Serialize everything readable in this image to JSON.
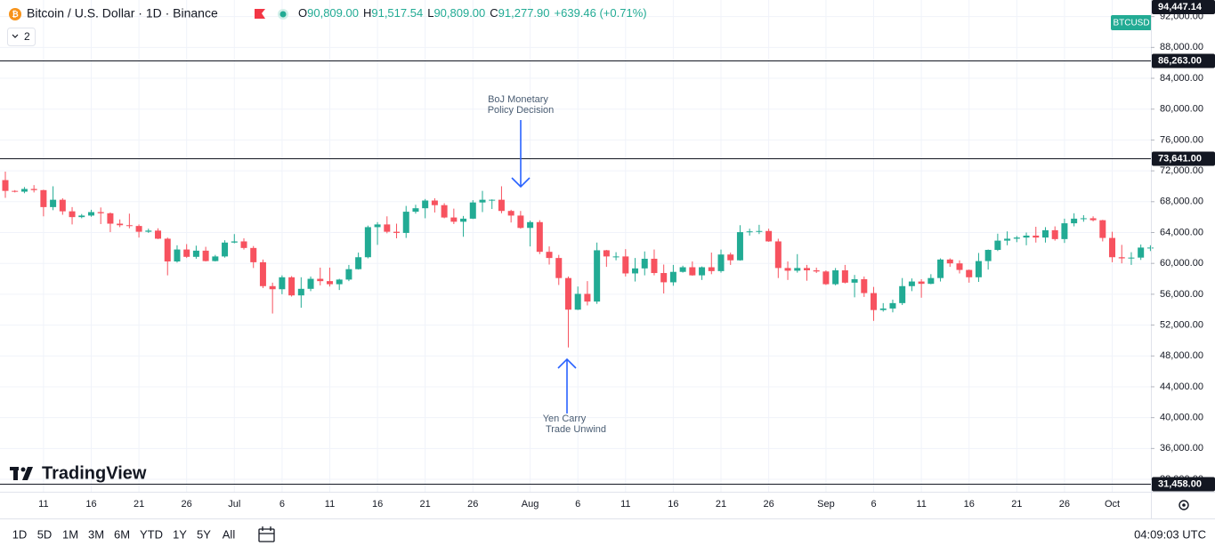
{
  "header": {
    "title": "Bitcoin / U.S. Dollar · 1D · Binance",
    "o_label": "O",
    "o": "90,809.00",
    "h_label": "H",
    "h": "91,517.54",
    "l_label": "L",
    "l": "90,809.00",
    "c_label": "C",
    "c": "91,277.90",
    "change": "+639.46 (+0.71%)",
    "indicators": "2",
    "symbol_tag": "BTCUSD"
  },
  "chart_data": {
    "type": "candlestick",
    "categories": [
      null,
      null,
      null,
      null,
      "11",
      null,
      null,
      null,
      null,
      "16",
      null,
      null,
      null,
      null,
      "21",
      null,
      null,
      null,
      null,
      "26",
      null,
      null,
      null,
      null,
      "Jul",
      null,
      null,
      null,
      null,
      "6",
      null,
      null,
      null,
      null,
      "11",
      null,
      null,
      null,
      null,
      "16",
      null,
      null,
      null,
      null,
      "21",
      null,
      null,
      null,
      null,
      "26",
      null,
      null,
      null,
      null,
      null,
      "Aug",
      null,
      null,
      null,
      null,
      "6",
      null,
      null,
      null,
      null,
      "11",
      null,
      null,
      null,
      null,
      "16",
      null,
      null,
      null,
      null,
      "21",
      null,
      null,
      null,
      null,
      "26",
      null,
      null,
      null,
      null,
      null,
      "Sep",
      null,
      null,
      null,
      null,
      "6",
      null,
      null,
      null,
      null,
      "11",
      null,
      null,
      null,
      null,
      "16",
      null,
      null,
      null,
      null,
      "21",
      null,
      null,
      null,
      null,
      "26",
      null,
      null,
      null,
      null,
      "Oct",
      null,
      null,
      null,
      null
    ],
    "open": [
      70800,
      69400,
      69300,
      69650,
      69500,
      67300,
      68250,
      66750,
      66000,
      66200,
      66650,
      66500,
      65150,
      64950,
      64850,
      64100,
      64250,
      63200,
      60250,
      61800,
      60850,
      61650,
      60300,
      60900,
      62700,
      62850,
      62000,
      60150,
      57050,
      56650,
      58200,
      55850,
      56700,
      58000,
      57700,
      57300,
      57900,
      59250,
      60800,
      64700,
      65050,
      64100,
      63950,
      66700,
      67150,
      68150,
      67550,
      65950,
      65400,
      65800,
      67900,
      68250,
      68250,
      66800,
      66200,
      64600,
      65350,
      61500,
      60700,
      58100,
      54000,
      56050,
      55050,
      61700,
      60900,
      60900,
      58700,
      59350,
      60600,
      58750,
      57550,
      58900,
      59500,
      58450,
      59500,
      59000,
      61150,
      60400,
      64050,
      64150,
      64200,
      62850,
      59400,
      59050,
      59400,
      59100,
      58950,
      57300,
      59100,
      57500,
      57950,
      56150,
      53950,
      54150,
      54850,
      57050,
      57650,
      57350,
      58100,
      60500,
      60000,
      59150,
      58200,
      60300,
      61750,
      62950,
      63200,
      63350,
      63600,
      63350,
      64300,
      63150,
      65200,
      65800,
      65850,
      65600,
      63300,
      60800,
      60650,
      60750,
      62050
    ],
    "high": [
      71900,
      69500,
      69900,
      70150,
      69550,
      69999,
      68450,
      67300,
      66400,
      66950,
      67250,
      66600,
      65700,
      66450,
      65050,
      64500,
      64550,
      63350,
      62350,
      62500,
      62300,
      62150,
      61100,
      63000,
      63800,
      63250,
      62250,
      60500,
      57500,
      58450,
      58350,
      58200,
      58300,
      59450,
      59450,
      58000,
      59800,
      61400,
      64900,
      65350,
      66100,
      65150,
      67450,
      67600,
      68350,
      68450,
      67800,
      67100,
      66150,
      68200,
      69400,
      68300,
      70000,
      66950,
      66800,
      65550,
      65600,
      62200,
      61100,
      58300,
      57000,
      57700,
      62700,
      61750,
      61450,
      61850,
      60700,
      61550,
      61800,
      59850,
      59800,
      59700,
      60250,
      59600,
      61400,
      61800,
      61400,
      64950,
      64500,
      65000,
      64500,
      63200,
      60250,
      61200,
      59800,
      59450,
      59100,
      59400,
      59800,
      58500,
      58300,
      56950,
      54850,
      55300,
      58100,
      58050,
      57950,
      58600,
      60650,
      60650,
      60400,
      59200,
      61350,
      61800,
      63850,
      64150,
      63550,
      64000,
      64750,
      64700,
      64800,
      65800,
      66500,
      66250,
      66100,
      65650,
      64100,
      62400,
      61450,
      62450,
      62350
    ],
    "low": [
      68500,
      69200,
      69100,
      69200,
      66100,
      66900,
      66300,
      65050,
      65850,
      66050,
      65100,
      64050,
      64700,
      64550,
      63350,
      63950,
      63150,
      58450,
      60100,
      60700,
      60600,
      60250,
      60250,
      60750,
      62600,
      61800,
      59400,
      56800,
      53500,
      56000,
      55700,
      54250,
      56400,
      57150,
      57000,
      56550,
      57700,
      59200,
      60650,
      62400,
      63900,
      63250,
      63300,
      66450,
      65850,
      66600,
      65850,
      65100,
      63450,
      65750,
      66650,
      67050,
      66500,
      65300,
      64500,
      62200,
      61200,
      59850,
      57200,
      49100,
      53950,
      54550,
      54750,
      59550,
      60400,
      58300,
      57650,
      58450,
      58450,
      56100,
      57100,
      58800,
      58400,
      57850,
      58600,
      58800,
      59800,
      60350,
      63600,
      63800,
      62800,
      58100,
      57850,
      58800,
      57750,
      58750,
      57200,
      57150,
      57400,
      55600,
      55650,
      52550,
      53750,
      53650,
      54600,
      56400,
      55550,
      57300,
      57650,
      59550,
      58700,
      57500,
      57600,
      59200,
      61600,
      62350,
      62750,
      62350,
      62700,
      62700,
      62950,
      62650,
      64800,
      65400,
      65450,
      62850,
      60150,
      60000,
      59800,
      60450,
      61600
    ],
    "close": [
      69400,
      69300,
      69650,
      69500,
      67300,
      68250,
      66750,
      66000,
      66200,
      66650,
      66500,
      65150,
      64950,
      64850,
      64100,
      64250,
      63200,
      60250,
      61800,
      60850,
      61650,
      60300,
      60900,
      62700,
      62850,
      62000,
      60150,
      57050,
      56650,
      58200,
      55850,
      56700,
      58000,
      57700,
      57300,
      57900,
      59250,
      60800,
      64700,
      65050,
      64100,
      63950,
      66700,
      67150,
      68150,
      67550,
      65950,
      65400,
      65800,
      67900,
      68250,
      68250,
      66800,
      66200,
      64600,
      65350,
      61500,
      60700,
      58100,
      54000,
      56050,
      55050,
      61700,
      60900,
      60900,
      58700,
      59350,
      60600,
      58750,
      57550,
      58900,
      59500,
      58450,
      59500,
      59000,
      61150,
      60400,
      64050,
      64150,
      64200,
      62850,
      59400,
      59050,
      59400,
      59100,
      58950,
      57300,
      59100,
      57500,
      57950,
      56150,
      53950,
      54150,
      54850,
      57050,
      57650,
      57350,
      58100,
      60500,
      60000,
      59150,
      58200,
      60300,
      61750,
      62950,
      63200,
      63350,
      63600,
      63350,
      64300,
      63150,
      65200,
      65800,
      65850,
      65600,
      63300,
      60800,
      60650,
      60750,
      62050,
      62050
    ],
    "up_color": "#22ab94",
    "down_color": "#f7525f",
    "ylim": [
      30390,
      94150
    ],
    "yticks": [
      {
        "value": 32000,
        "label": "32,000.00"
      },
      {
        "value": 36000,
        "label": "36,000.00"
      },
      {
        "value": 40000,
        "label": "40,000.00"
      },
      {
        "value": 44000,
        "label": "44,000.00"
      },
      {
        "value": 48000,
        "label": "48,000.00"
      },
      {
        "value": 52000,
        "label": "52,000.00"
      },
      {
        "value": 56000,
        "label": "56,000.00"
      },
      {
        "value": 60000,
        "label": "60,000.00"
      },
      {
        "value": 64000,
        "label": "64,000.00"
      },
      {
        "value": 68000,
        "label": "68,000.00"
      },
      {
        "value": 72000,
        "label": "72,000.00"
      },
      {
        "value": 76000,
        "label": "76,000.00"
      },
      {
        "value": 80000,
        "label": "80,000.00"
      },
      {
        "value": 84000,
        "label": "84,000.00"
      },
      {
        "value": 88000,
        "label": "88,000.00"
      },
      {
        "value": 92000,
        "label": "92,000.00"
      }
    ],
    "grid": true,
    "price_lines": [
      {
        "value": 86263,
        "label": "86,263.00"
      },
      {
        "value": 73641,
        "label": "73,641.00"
      },
      {
        "value": 31458,
        "label": "31,458.00"
      }
    ],
    "current_price": {
      "value": 94447.14,
      "label": "94,447.14"
    },
    "annotations": [
      {
        "lines": [
          "BoJ Monetary",
          "Policy Decision"
        ]
      },
      {
        "lines": [
          "Yen Carry",
          "Trade Unwind"
        ]
      }
    ]
  },
  "brand": "TradingView",
  "toolbar": {
    "ranges": [
      "1D",
      "5D",
      "1M",
      "3M",
      "6M",
      "YTD",
      "1Y",
      "5Y",
      "All"
    ],
    "clock": "04:09:03 UTC"
  }
}
